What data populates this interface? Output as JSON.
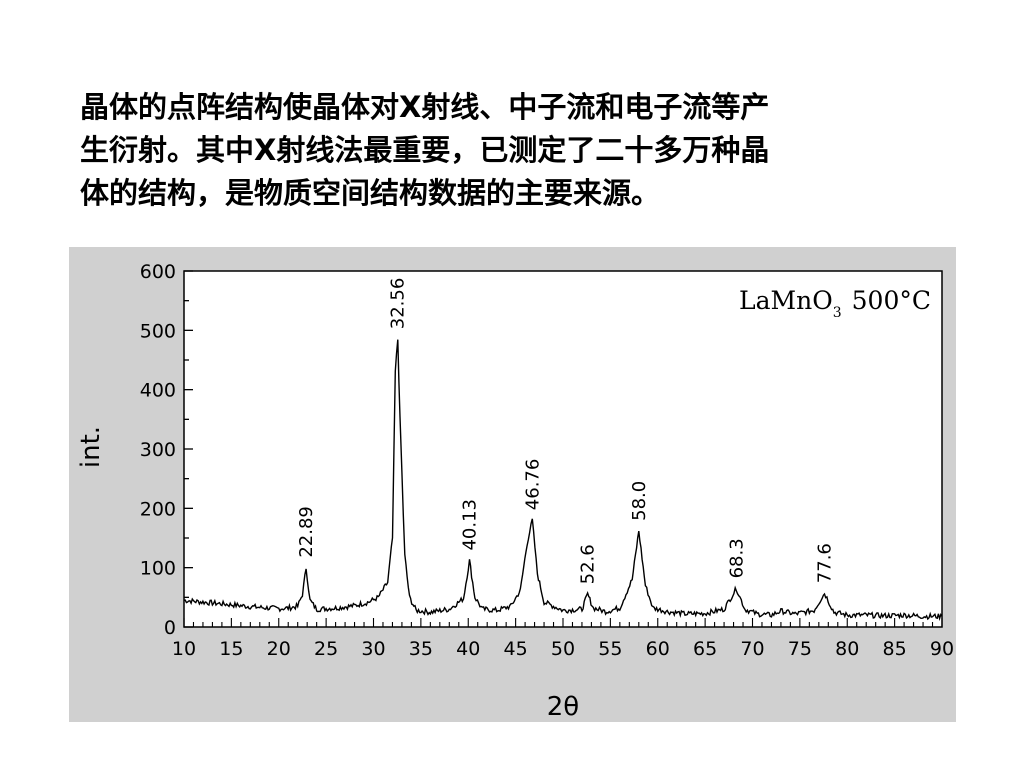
{
  "text": {
    "lines": [
      "晶体的点阵结构使晶体对X射线、中子流和电子流等产",
      "生衍射。其中X射线法最重要，已测定了二十多万种晶",
      "体的结构，是物质空间结构数据的主要来源。"
    ]
  },
  "chart_data": {
    "type": "line",
    "annotation": {
      "main": "LaMnO",
      "sub": "3",
      "temp": "500°C"
    },
    "xlabel": "2θ",
    "ylabel": "int.",
    "xlim": [
      10,
      90
    ],
    "ylim": [
      0,
      600
    ],
    "x_ticks": [
      10,
      15,
      20,
      25,
      30,
      35,
      40,
      45,
      50,
      55,
      60,
      65,
      70,
      75,
      80,
      85,
      90
    ],
    "y_ticks": [
      0,
      100,
      200,
      300,
      400,
      500,
      600
    ],
    "x_tick_labels": [
      "10",
      "15",
      "20",
      "25",
      "30",
      "35",
      "40",
      "45",
      "50",
      "55",
      "60",
      "65",
      "70",
      "75",
      "80",
      "85",
      "90"
    ],
    "y_tick_labels": [
      "0",
      "100",
      "200",
      "300",
      "400",
      "500",
      "600"
    ],
    "peaks": [
      {
        "label": "22.89",
        "x": 22.89,
        "y": 100
      },
      {
        "label": "32.56",
        "x": 32.56,
        "y": 485
      },
      {
        "label": "40.13",
        "x": 40.13,
        "y": 112
      },
      {
        "label": "46.76",
        "x": 46.76,
        "y": 180
      },
      {
        "label": "52.6",
        "x": 52.6,
        "y": 55
      },
      {
        "label": "58.0",
        "x": 58.0,
        "y": 162
      },
      {
        "label": "68.3",
        "x": 68.3,
        "y": 65
      },
      {
        "label": "77.6",
        "x": 77.6,
        "y": 57
      }
    ],
    "series": [
      {
        "x": [
          10,
          12,
          14,
          16,
          18,
          20,
          21,
          22,
          22.5,
          22.89,
          23.3,
          24,
          26,
          28,
          29.5,
          30.5,
          31.5,
          32,
          32.3,
          32.56,
          32.8,
          33.0,
          33.3,
          33.8,
          34.5,
          36,
          38,
          39.5,
          40.13,
          40.7,
          41.5,
          43,
          44.5,
          45.5,
          46.2,
          46.76,
          47.3,
          48,
          50,
          52,
          52.6,
          53.2,
          54.5,
          56,
          57.3,
          58.0,
          58.7,
          59.5,
          61,
          63,
          65,
          67,
          68.3,
          69.2,
          70.5,
          72,
          73,
          74.5,
          76.5,
          77.6,
          78.6,
          80,
          82,
          84,
          86,
          88,
          90
        ],
        "y": [
          45,
          42,
          39,
          36,
          33,
          31,
          32,
          35,
          55,
          100,
          45,
          30,
          32,
          36,
          42,
          50,
          75,
          150,
          430,
          485,
          350,
          260,
          120,
          50,
          28,
          25,
          30,
          48,
          112,
          50,
          30,
          28,
          35,
          62,
          140,
          180,
          90,
          42,
          28,
          30,
          55,
          32,
          26,
          32,
          80,
          162,
          70,
          32,
          26,
          22,
          23,
          30,
          65,
          30,
          22,
          20,
          27,
          22,
          28,
          57,
          25,
          20,
          20,
          19,
          20,
          18,
          18
        ]
      }
    ]
  }
}
